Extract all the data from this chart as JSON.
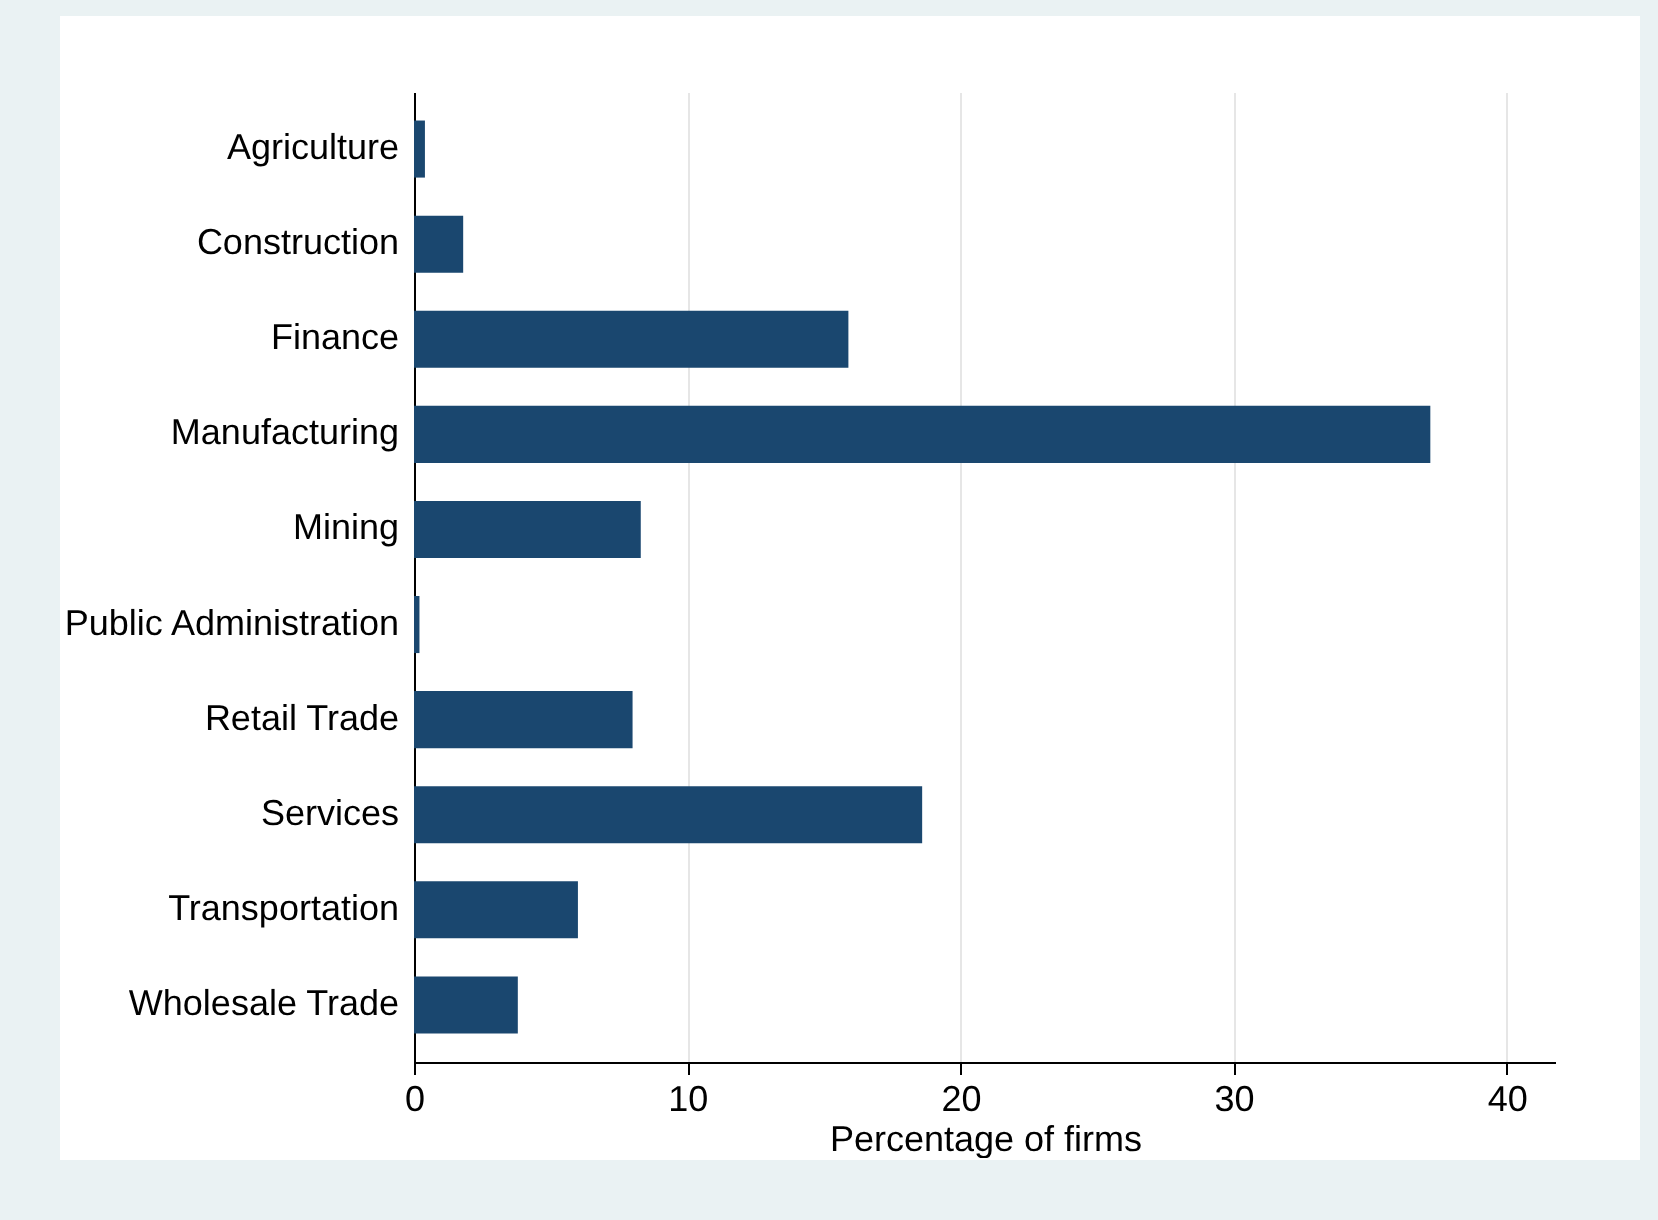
{
  "chart_data": {
    "type": "bar",
    "orientation": "horizontal",
    "xlabel": "Percentage of firms",
    "categories": [
      "Agriculture",
      "Construction",
      "Finance",
      "Manufacturing",
      "Mining",
      "Public Administration",
      "Retail Trade",
      "Services",
      "Transportation",
      "Wholesale Trade"
    ],
    "values": [
      0.4,
      1.8,
      15.9,
      37.2,
      8.3,
      0.2,
      8.0,
      18.6,
      6.0,
      3.8
    ],
    "color": "#1a476f",
    "xlim": [
      0,
      41.8
    ],
    "xticks": [
      0,
      10,
      20,
      30,
      40
    ],
    "grid": "x"
  }
}
